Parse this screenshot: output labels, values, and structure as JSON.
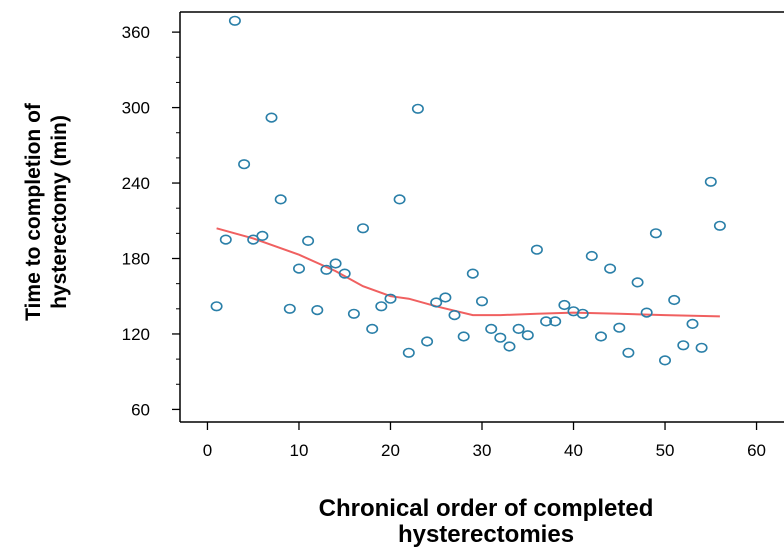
{
  "chart_data": {
    "type": "scatter",
    "title": "",
    "xlabel_line1": "Chronical order of completed",
    "xlabel_line2": "hysterectomies",
    "ylabel_line1": "Time to completion of",
    "ylabel_line2": "hysterectomy (min)",
    "xlim": [
      -3,
      63
    ],
    "ylim": [
      50,
      376
    ],
    "x_ticks": [
      0,
      10,
      20,
      30,
      40,
      50,
      60
    ],
    "y_ticks": [
      60,
      120,
      180,
      240,
      300,
      360
    ],
    "grid": false,
    "legend": "none",
    "point_color": "#2a7fa8",
    "trend_color": "#f06060",
    "points": [
      [
        1,
        142
      ],
      [
        2,
        195
      ],
      [
        3,
        369
      ],
      [
        4,
        255
      ],
      [
        5,
        195
      ],
      [
        6,
        198
      ],
      [
        7,
        292
      ],
      [
        8,
        227
      ],
      [
        9,
        140
      ],
      [
        10,
        172
      ],
      [
        11,
        194
      ],
      [
        12,
        139
      ],
      [
        13,
        171
      ],
      [
        14,
        176
      ],
      [
        15,
        168
      ],
      [
        16,
        136
      ],
      [
        17,
        204
      ],
      [
        18,
        124
      ],
      [
        19,
        142
      ],
      [
        20,
        148
      ],
      [
        21,
        227
      ],
      [
        22,
        105
      ],
      [
        23,
        299
      ],
      [
        24,
        114
      ],
      [
        25,
        145
      ],
      [
        26,
        149
      ],
      [
        27,
        135
      ],
      [
        28,
        118
      ],
      [
        29,
        168
      ],
      [
        30,
        146
      ],
      [
        31,
        124
      ],
      [
        32,
        117
      ],
      [
        33,
        110
      ],
      [
        34,
        124
      ],
      [
        35,
        119
      ],
      [
        36,
        187
      ],
      [
        37,
        130
      ],
      [
        38,
        130
      ],
      [
        39,
        143
      ],
      [
        40,
        138
      ],
      [
        41,
        136
      ],
      [
        42,
        182
      ],
      [
        43,
        118
      ],
      [
        44,
        172
      ],
      [
        45,
        125
      ],
      [
        46,
        105
      ],
      [
        47,
        161
      ],
      [
        48,
        137
      ],
      [
        49,
        200
      ],
      [
        50,
        99
      ],
      [
        51,
        147
      ],
      [
        52,
        111
      ],
      [
        53,
        128
      ],
      [
        54,
        109
      ],
      [
        55,
        241
      ],
      [
        56,
        206
      ]
    ],
    "trend_line": [
      [
        1,
        204
      ],
      [
        5,
        196
      ],
      [
        10,
        183
      ],
      [
        14,
        170
      ],
      [
        17,
        158
      ],
      [
        20,
        150
      ],
      [
        22,
        148
      ],
      [
        25,
        142
      ],
      [
        29,
        135
      ],
      [
        32,
        135
      ],
      [
        36,
        136
      ],
      [
        40,
        137
      ],
      [
        45,
        136
      ],
      [
        50,
        135
      ],
      [
        56,
        134
      ]
    ]
  }
}
